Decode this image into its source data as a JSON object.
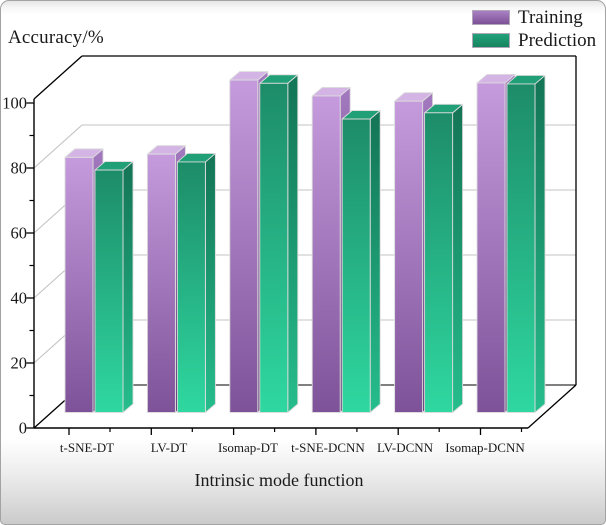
{
  "figure": {
    "y_axis_title": "Accuracy/%",
    "x_axis_label": "Intrinsic mode function"
  },
  "legend": {
    "items": [
      {
        "label": "Training",
        "color_top": "#aa80c5",
        "color_bottom": "#7c5194"
      },
      {
        "label": "Prediction",
        "color_top": "#22a17a",
        "color_bottom": "#17855f"
      }
    ]
  },
  "chart_data": {
    "type": "bar",
    "projection": "3d-oblique",
    "title": "",
    "ylabel": "Accuracy/%",
    "xlabel": "Intrinsic mode function",
    "categories": [
      "t-SNE-DT",
      "LV-DT",
      "Isomap-DT",
      "t-SNE-DCNN",
      "LV-DCNN",
      "Isomap-DCNN"
    ],
    "series": [
      {
        "name": "Training",
        "values": [
          78.5,
          79.5,
          102.3,
          97.4,
          95.8,
          101.4
        ]
      },
      {
        "name": "Prediction",
        "values": [
          74.6,
          77.1,
          101.3,
          90.3,
          92.2,
          101.1
        ]
      }
    ],
    "y_ticks": [
      0,
      20,
      40,
      60,
      80,
      100
    ],
    "y_minor_step": 10,
    "ylim": [
      0,
      101.5
    ],
    "grid": true,
    "legend_position": "top-right",
    "colors": {
      "training_front_top": "#c59bdd",
      "training_front_bottom": "#7e5298",
      "training_side_top": "#a379bf",
      "training_side_bottom": "#5e3c74",
      "training_top_face": "#d3b4e4",
      "prediction_front_top": "#1d8c68",
      "prediction_front_bottom": "#2fd8a0",
      "prediction_side_top": "#137455",
      "prediction_side_bottom": "#26bd8c",
      "prediction_top_face": "#21a077",
      "bar_edge": "#dcdcdc",
      "grid_line": "#c3c3c3",
      "axis_line": "#000000",
      "text": "#1a1a1a"
    }
  }
}
